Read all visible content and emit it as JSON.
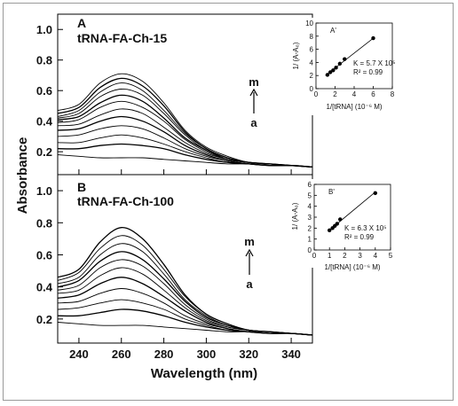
{
  "figure": {
    "ylabel": "Absorbance",
    "xlabel": "Wavelength (nm)"
  },
  "chart_data": [
    {
      "type": "line",
      "panel": "A",
      "title": "tRNA-FA-Ch-15",
      "arrow_top": "m",
      "arrow_bottom": "a",
      "xlim": [
        230,
        350
      ],
      "ylim": [
        0.05,
        1.1
      ],
      "x_ticks": [
        240,
        260,
        280,
        300,
        320,
        340
      ],
      "y_ticks": [
        0.2,
        0.4,
        0.6,
        0.8,
        1.0
      ],
      "y_tick_labels": [
        "0.2",
        "0.4",
        "0.6",
        "0.8",
        "1.0"
      ],
      "x": [
        230,
        240,
        250,
        260,
        270,
        280,
        290,
        300,
        310,
        320,
        330,
        340,
        350
      ],
      "series": [
        {
          "values": [
            0.18,
            0.17,
            0.16,
            0.16,
            0.16,
            0.15,
            0.14,
            0.13,
            0.12,
            0.12,
            0.11,
            0.11,
            0.1
          ]
        },
        {
          "values": [
            0.22,
            0.22,
            0.24,
            0.25,
            0.24,
            0.22,
            0.18,
            0.15,
            0.13,
            0.12,
            0.11,
            0.11,
            0.1
          ]
        },
        {
          "values": [
            0.26,
            0.26,
            0.29,
            0.31,
            0.29,
            0.25,
            0.2,
            0.16,
            0.13,
            0.12,
            0.11,
            0.11,
            0.1
          ]
        },
        {
          "values": [
            0.3,
            0.31,
            0.35,
            0.37,
            0.35,
            0.29,
            0.22,
            0.17,
            0.14,
            0.12,
            0.11,
            0.11,
            0.1
          ]
        },
        {
          "values": [
            0.34,
            0.35,
            0.4,
            0.43,
            0.4,
            0.33,
            0.24,
            0.18,
            0.14,
            0.12,
            0.11,
            0.11,
            0.1
          ]
        },
        {
          "values": [
            0.37,
            0.38,
            0.44,
            0.48,
            0.45,
            0.36,
            0.26,
            0.19,
            0.15,
            0.13,
            0.12,
            0.11,
            0.1
          ]
        },
        {
          "values": [
            0.39,
            0.41,
            0.49,
            0.53,
            0.49,
            0.4,
            0.28,
            0.2,
            0.15,
            0.13,
            0.12,
            0.11,
            0.1
          ]
        },
        {
          "values": [
            0.41,
            0.43,
            0.52,
            0.57,
            0.53,
            0.42,
            0.29,
            0.21,
            0.15,
            0.13,
            0.12,
            0.11,
            0.1
          ]
        },
        {
          "values": [
            0.42,
            0.45,
            0.56,
            0.61,
            0.57,
            0.45,
            0.31,
            0.21,
            0.16,
            0.13,
            0.12,
            0.11,
            0.1
          ]
        },
        {
          "values": [
            0.43,
            0.47,
            0.59,
            0.65,
            0.6,
            0.47,
            0.32,
            0.22,
            0.16,
            0.13,
            0.12,
            0.11,
            0.1
          ]
        },
        {
          "values": [
            0.45,
            0.49,
            0.62,
            0.68,
            0.63,
            0.5,
            0.33,
            0.22,
            0.16,
            0.13,
            0.12,
            0.11,
            0.1
          ]
        },
        {
          "values": [
            0.47,
            0.51,
            0.65,
            0.71,
            0.66,
            0.52,
            0.34,
            0.23,
            0.17,
            0.13,
            0.12,
            0.11,
            0.1
          ]
        }
      ],
      "inset": {
        "label": "A'",
        "type": "scatter",
        "xlabel": "1/[tRNA] (10⁻⁶ M)",
        "ylabel": "1/ (A-A₀)",
        "xlim": [
          0,
          8
        ],
        "ylim": [
          0,
          10
        ],
        "x_ticks": [
          0,
          2,
          4,
          6,
          8
        ],
        "y_ticks": [
          0,
          2,
          4,
          6,
          8,
          10
        ],
        "x": [
          1.2,
          1.5,
          1.8,
          2.1,
          2.5,
          3.0,
          6.0
        ],
        "y": [
          2.1,
          2.5,
          2.8,
          3.2,
          3.8,
          4.5,
          7.7
        ],
        "fit": [
          [
            1.0,
            2.0
          ],
          [
            6.1,
            7.8
          ]
        ],
        "k_text": "K = 5.7 X 10⁵",
        "r2_text": "R² = 0.99"
      }
    },
    {
      "type": "line",
      "panel": "B",
      "title": "tRNA-FA-Ch-100",
      "arrow_top": "m",
      "arrow_bottom": "a",
      "xlim": [
        230,
        350
      ],
      "ylim": [
        0.05,
        1.1
      ],
      "x_ticks": [
        240,
        260,
        280,
        300,
        320,
        340
      ],
      "y_ticks": [
        0.2,
        0.4,
        0.6,
        0.8,
        1.0
      ],
      "y_tick_labels": [
        "0.2",
        "0.4",
        "0.6",
        "0.8",
        "1.0"
      ],
      "x": [
        230,
        240,
        250,
        260,
        270,
        280,
        290,
        300,
        310,
        320,
        330,
        340,
        350
      ],
      "series": [
        {
          "values": [
            0.18,
            0.17,
            0.16,
            0.16,
            0.16,
            0.15,
            0.14,
            0.13,
            0.12,
            0.12,
            0.11,
            0.11,
            0.1
          ]
        },
        {
          "values": [
            0.22,
            0.22,
            0.24,
            0.26,
            0.25,
            0.22,
            0.18,
            0.15,
            0.13,
            0.12,
            0.11,
            0.11,
            0.1
          ]
        },
        {
          "values": [
            0.26,
            0.27,
            0.3,
            0.32,
            0.3,
            0.26,
            0.2,
            0.16,
            0.13,
            0.12,
            0.11,
            0.11,
            0.1
          ]
        },
        {
          "values": [
            0.3,
            0.31,
            0.36,
            0.39,
            0.36,
            0.3,
            0.22,
            0.17,
            0.14,
            0.12,
            0.11,
            0.11,
            0.1
          ]
        },
        {
          "values": [
            0.33,
            0.35,
            0.42,
            0.46,
            0.42,
            0.34,
            0.25,
            0.18,
            0.14,
            0.12,
            0.11,
            0.11,
            0.1
          ]
        },
        {
          "values": [
            0.36,
            0.38,
            0.47,
            0.52,
            0.48,
            0.38,
            0.27,
            0.19,
            0.15,
            0.13,
            0.12,
            0.11,
            0.1
          ]
        },
        {
          "values": [
            0.38,
            0.41,
            0.52,
            0.57,
            0.53,
            0.42,
            0.29,
            0.2,
            0.15,
            0.13,
            0.12,
            0.11,
            0.1
          ]
        },
        {
          "values": [
            0.4,
            0.44,
            0.56,
            0.62,
            0.57,
            0.45,
            0.31,
            0.21,
            0.16,
            0.13,
            0.12,
            0.11,
            0.1
          ]
        },
        {
          "values": [
            0.42,
            0.46,
            0.6,
            0.67,
            0.62,
            0.48,
            0.32,
            0.22,
            0.16,
            0.13,
            0.12,
            0.11,
            0.1
          ]
        },
        {
          "values": [
            0.44,
            0.49,
            0.64,
            0.72,
            0.66,
            0.51,
            0.34,
            0.23,
            0.17,
            0.13,
            0.12,
            0.11,
            0.1
          ]
        },
        {
          "values": [
            0.46,
            0.51,
            0.68,
            0.77,
            0.7,
            0.54,
            0.35,
            0.23,
            0.17,
            0.13,
            0.12,
            0.11,
            0.1
          ]
        }
      ],
      "inset": {
        "label": "B'",
        "type": "scatter",
        "xlabel": "1/[tRNA] (10⁻⁶ M)",
        "ylabel": "1/ (A-A₀)",
        "xlim": [
          0,
          5
        ],
        "ylim": [
          0,
          6
        ],
        "x_ticks": [
          0,
          1,
          2,
          3,
          4,
          5
        ],
        "y_ticks": [
          0,
          1,
          2,
          3,
          4,
          5,
          6
        ],
        "x": [
          1.0,
          1.2,
          1.35,
          1.5,
          1.7,
          4.0
        ],
        "y": [
          1.8,
          2.0,
          2.2,
          2.4,
          2.8,
          5.2
        ],
        "fit": [
          [
            0.9,
            1.7
          ],
          [
            4.0,
            5.3
          ]
        ],
        "k_text": "K = 6.3 X 10⁵",
        "r2_text": "R² = 0.99"
      }
    }
  ]
}
